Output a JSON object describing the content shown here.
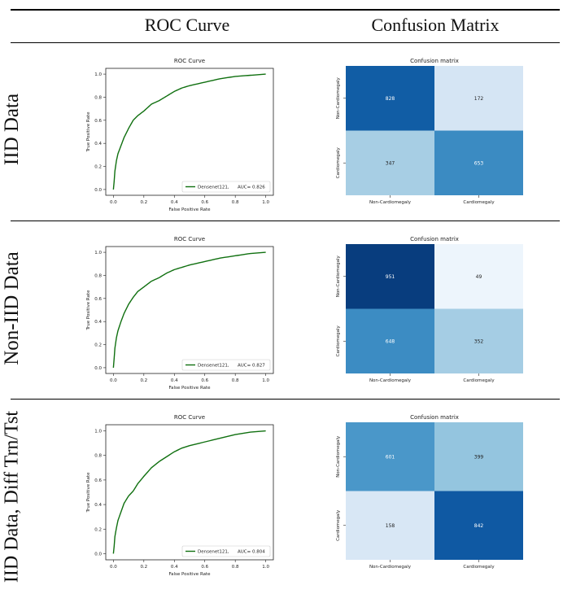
{
  "header": {
    "col_roc": "ROC Curve",
    "col_cm": "Confusion Matrix"
  },
  "rows": [
    {
      "label": "IID Data"
    },
    {
      "label": "Non-IID Data"
    },
    {
      "label": "IID Data, Diff Trn/Tst"
    }
  ],
  "colors": {
    "roc_line": "#107010",
    "cm_low": "#f7fbff",
    "cm_high": "#08306b"
  },
  "chart_data": [
    {
      "type": "line",
      "title": "ROC Curve",
      "xlabel": "False Positive Rate",
      "ylabel": "True Positive Rate",
      "xlim": [
        0,
        1
      ],
      "ylim": [
        0,
        1
      ],
      "xticks": [
        "0.0",
        "0.2",
        "0.4",
        "0.6",
        "0.8",
        "1.0"
      ],
      "yticks": [
        "0.0",
        "0.2",
        "0.4",
        "0.6",
        "0.8",
        "1.0"
      ],
      "legend_position": "lower-right",
      "series": [
        {
          "name": "Densenet121,",
          "auc_label": "AUC= 0.826",
          "x": [
            0,
            0.005,
            0.01,
            0.02,
            0.03,
            0.05,
            0.07,
            0.1,
            0.13,
            0.16,
            0.2,
            0.25,
            0.3,
            0.35,
            0.4,
            0.45,
            0.5,
            0.6,
            0.7,
            0.8,
            0.9,
            0.95,
            1.0
          ],
          "y": [
            0,
            0.07,
            0.16,
            0.25,
            0.31,
            0.38,
            0.45,
            0.53,
            0.6,
            0.64,
            0.68,
            0.74,
            0.77,
            0.81,
            0.85,
            0.88,
            0.9,
            0.93,
            0.96,
            0.98,
            0.99,
            0.995,
            1.0
          ]
        }
      ]
    },
    {
      "type": "heatmap",
      "title": "Confusion matrix",
      "row_labels": [
        "Non-Cardiomegaly",
        "Cardiomegaly"
      ],
      "col_labels": [
        "Non-Cardiomegaly",
        "Cardiomegaly"
      ],
      "values": [
        [
          828,
          172
        ],
        [
          347,
          653
        ]
      ],
      "vmax": 1000
    },
    {
      "type": "line",
      "title": "ROC Curve",
      "xlabel": "False Positive Rate",
      "ylabel": "True Positive Rate",
      "xlim": [
        0,
        1
      ],
      "ylim": [
        0,
        1
      ],
      "xticks": [
        "0.0",
        "0.2",
        "0.4",
        "0.6",
        "0.8",
        "1.0"
      ],
      "yticks": [
        "0.0",
        "0.2",
        "0.4",
        "0.6",
        "0.8",
        "1.0"
      ],
      "legend_position": "lower-right",
      "series": [
        {
          "name": "Densenet121,",
          "auc_label": "AUC= 0.827",
          "x": [
            0,
            0.005,
            0.01,
            0.02,
            0.03,
            0.05,
            0.07,
            0.1,
            0.13,
            0.16,
            0.2,
            0.25,
            0.3,
            0.35,
            0.4,
            0.45,
            0.5,
            0.6,
            0.7,
            0.8,
            0.9,
            0.95,
            1.0
          ],
          "y": [
            0,
            0.08,
            0.17,
            0.26,
            0.32,
            0.4,
            0.47,
            0.55,
            0.61,
            0.66,
            0.7,
            0.75,
            0.78,
            0.82,
            0.85,
            0.87,
            0.89,
            0.92,
            0.95,
            0.97,
            0.99,
            0.995,
            1.0
          ]
        }
      ]
    },
    {
      "type": "heatmap",
      "title": "Confusion matrix",
      "row_labels": [
        "Non-Cardiomegaly",
        "Cardiomegaly"
      ],
      "col_labels": [
        "Non-Cardiomegaly",
        "Cardiomegaly"
      ],
      "values": [
        [
          951,
          49
        ],
        [
          648,
          352
        ]
      ],
      "vmax": 1000
    },
    {
      "type": "line",
      "title": "ROC Curve",
      "xlabel": "False Positive Rate",
      "ylabel": "True Positive Rate",
      "xlim": [
        0,
        1
      ],
      "ylim": [
        0,
        1
      ],
      "xticks": [
        "0.0",
        "0.2",
        "0.4",
        "0.6",
        "0.8",
        "1.0"
      ],
      "yticks": [
        "0.0",
        "0.2",
        "0.4",
        "0.6",
        "0.8",
        "1.0"
      ],
      "legend_position": "lower-right",
      "series": [
        {
          "name": "Densenet121,",
          "auc_label": "AUC= 0.804",
          "x": [
            0,
            0.005,
            0.01,
            0.02,
            0.03,
            0.05,
            0.07,
            0.1,
            0.13,
            0.16,
            0.2,
            0.25,
            0.3,
            0.35,
            0.4,
            0.45,
            0.5,
            0.6,
            0.7,
            0.8,
            0.9,
            0.95,
            1.0
          ],
          "y": [
            0,
            0.06,
            0.14,
            0.21,
            0.27,
            0.34,
            0.41,
            0.47,
            0.51,
            0.57,
            0.63,
            0.7,
            0.75,
            0.79,
            0.83,
            0.86,
            0.88,
            0.91,
            0.94,
            0.97,
            0.99,
            0.995,
            1.0
          ]
        }
      ]
    },
    {
      "type": "heatmap",
      "title": "Confusion matrix",
      "row_labels": [
        "Non-Cardiomegaly",
        "Cardiomegaly"
      ],
      "col_labels": [
        "Non-Cardiomegaly",
        "Cardiomegaly"
      ],
      "values": [
        [
          601,
          399
        ],
        [
          158,
          842
        ]
      ],
      "vmax": 1000
    }
  ]
}
